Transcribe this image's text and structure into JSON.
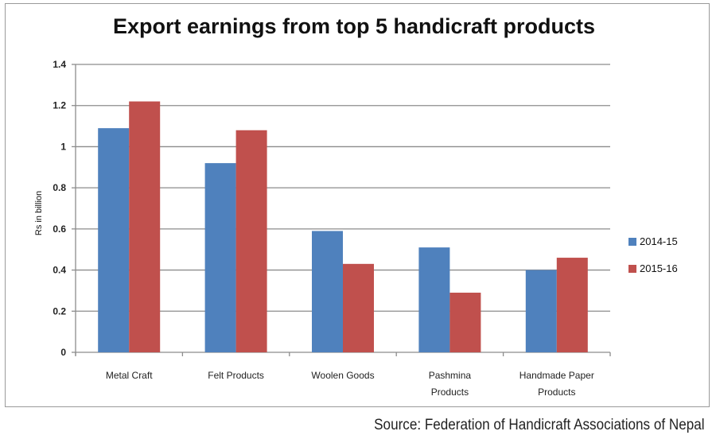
{
  "chart_data": {
    "type": "bar",
    "title": "Export earnings from top 5 handicraft products",
    "xlabel": "",
    "ylabel": "Rs in billion",
    "ylim": [
      0,
      1.4
    ],
    "yticks": [
      "0",
      "0.2",
      "0.4",
      "0.6",
      "0.8",
      "1",
      "1.2",
      "1.4"
    ],
    "grid": true,
    "legend_position": "right",
    "categories": [
      "Metal Craft",
      "Felt Products",
      "Woolen Goods",
      "Pashmina Products",
      "Handmade Paper Products"
    ],
    "series": [
      {
        "name": "2014-15",
        "color": "#4f81bd",
        "values": [
          1.09,
          0.92,
          0.59,
          0.51,
          0.4
        ]
      },
      {
        "name": "2015-16",
        "color": "#c0504d",
        "values": [
          1.22,
          1.08,
          0.43,
          0.29,
          0.46
        ]
      }
    ]
  },
  "source": "Source: Federation of Handicraft Associations of Nepal"
}
